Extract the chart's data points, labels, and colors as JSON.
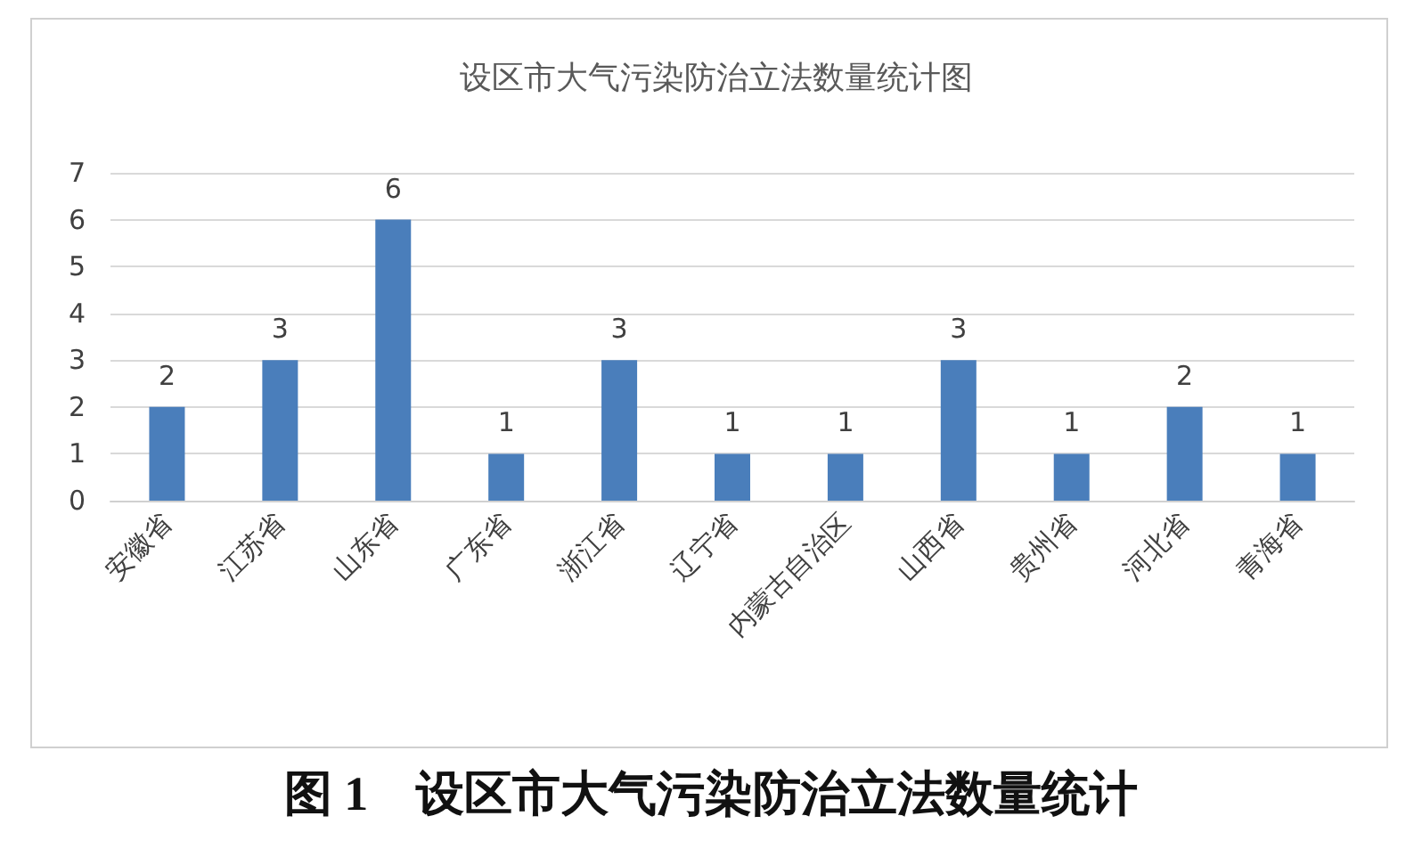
{
  "chart_data": {
    "type": "bar",
    "title": "设区市大气污染防治立法数量统计图",
    "categories": [
      "安徽省",
      "江苏省",
      "山东省",
      "广东省",
      "浙江省",
      "辽宁省",
      "内蒙古自治区",
      "山西省",
      "贵州省",
      "河北省",
      "青海省"
    ],
    "values": [
      2,
      3,
      6,
      1,
      3,
      1,
      1,
      3,
      1,
      2,
      1
    ],
    "color": "#4a7ebb",
    "ylim": [
      0,
      7
    ],
    "yticks": [
      0,
      1,
      2,
      3,
      4,
      5,
      6,
      7
    ],
    "grid": "y",
    "data_labels": true,
    "annotations": [
      "图 1　设区市大气污染防治立法数量统计"
    ]
  }
}
